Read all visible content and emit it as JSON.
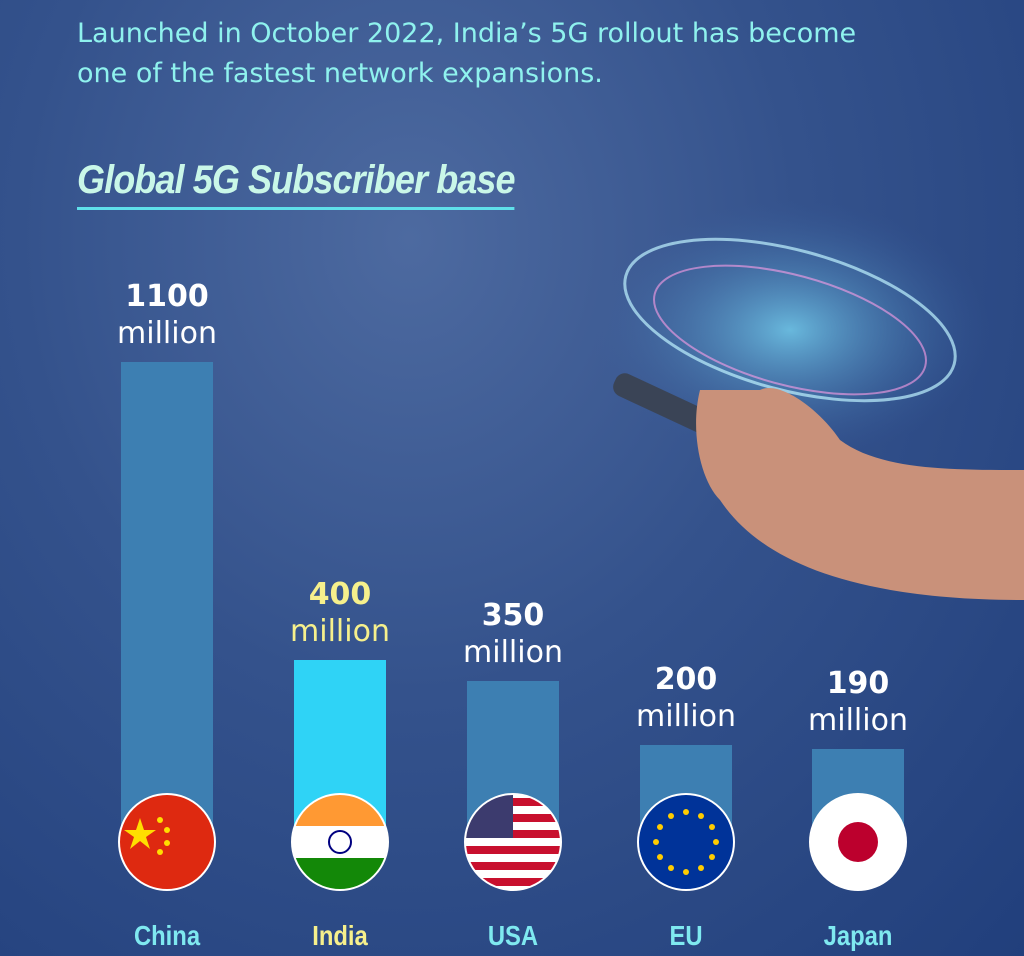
{
  "chart_data": {
    "type": "bar",
    "subtitle": "Launched in October 2022, India’s 5G rollout has become one of the fastest network expansions.",
    "title": "Global 5G Subscriber base",
    "categories": [
      "China",
      "India",
      "USA",
      "EU",
      "Japan"
    ],
    "values": [
      1100,
      400,
      350,
      200,
      190
    ],
    "value_labels": [
      "1100 million",
      "400 million",
      "350 million",
      "200 million",
      "190 million"
    ],
    "colors": [
      "#3d7fb2",
      "#2fd3f6",
      "#3d7fb2",
      "#3d7fb2",
      "#3d7fb2"
    ],
    "label_colors": [
      "#ffffff",
      "#f6f08c",
      "#ffffff",
      "#ffffff",
      "#ffffff"
    ],
    "category_colors": [
      "#7fe9f0",
      "#f6f08c",
      "#7fe9f0",
      "#7fe9f0",
      "#7fe9f0"
    ]
  }
}
